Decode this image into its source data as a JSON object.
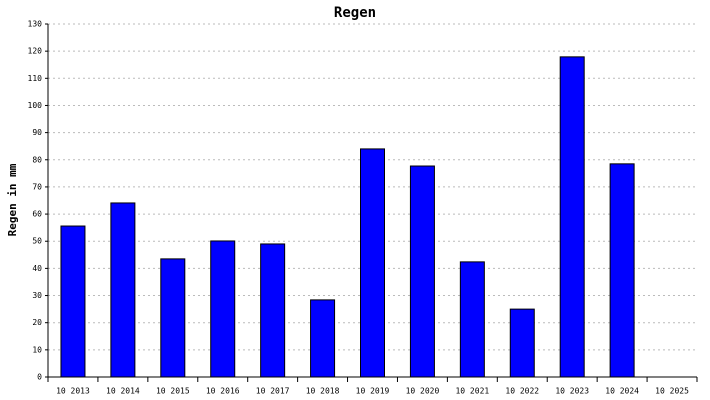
{
  "chart_data": {
    "type": "bar",
    "title": "Regen",
    "y_label": "Regen in mm",
    "categories": [
      "10 2013",
      "10 2014",
      "10 2015",
      "10 2016",
      "10 2017",
      "10 2018",
      "10 2019",
      "10 2020",
      "10 2021",
      "10 2022",
      "10 2023",
      "10 2024",
      "10 2025"
    ],
    "values": [
      55.6,
      64.1,
      43.5,
      50.1,
      49.0,
      28.4,
      84.0,
      77.7,
      42.4,
      25.0,
      117.9,
      78.5,
      null
    ],
    "color": "#0000ff",
    "ylim": [
      0,
      130
    ],
    "yticks": [
      0,
      10,
      20,
      30,
      40,
      50,
      60,
      70,
      80,
      90,
      100,
      110,
      120,
      130
    ],
    "grid": true
  }
}
